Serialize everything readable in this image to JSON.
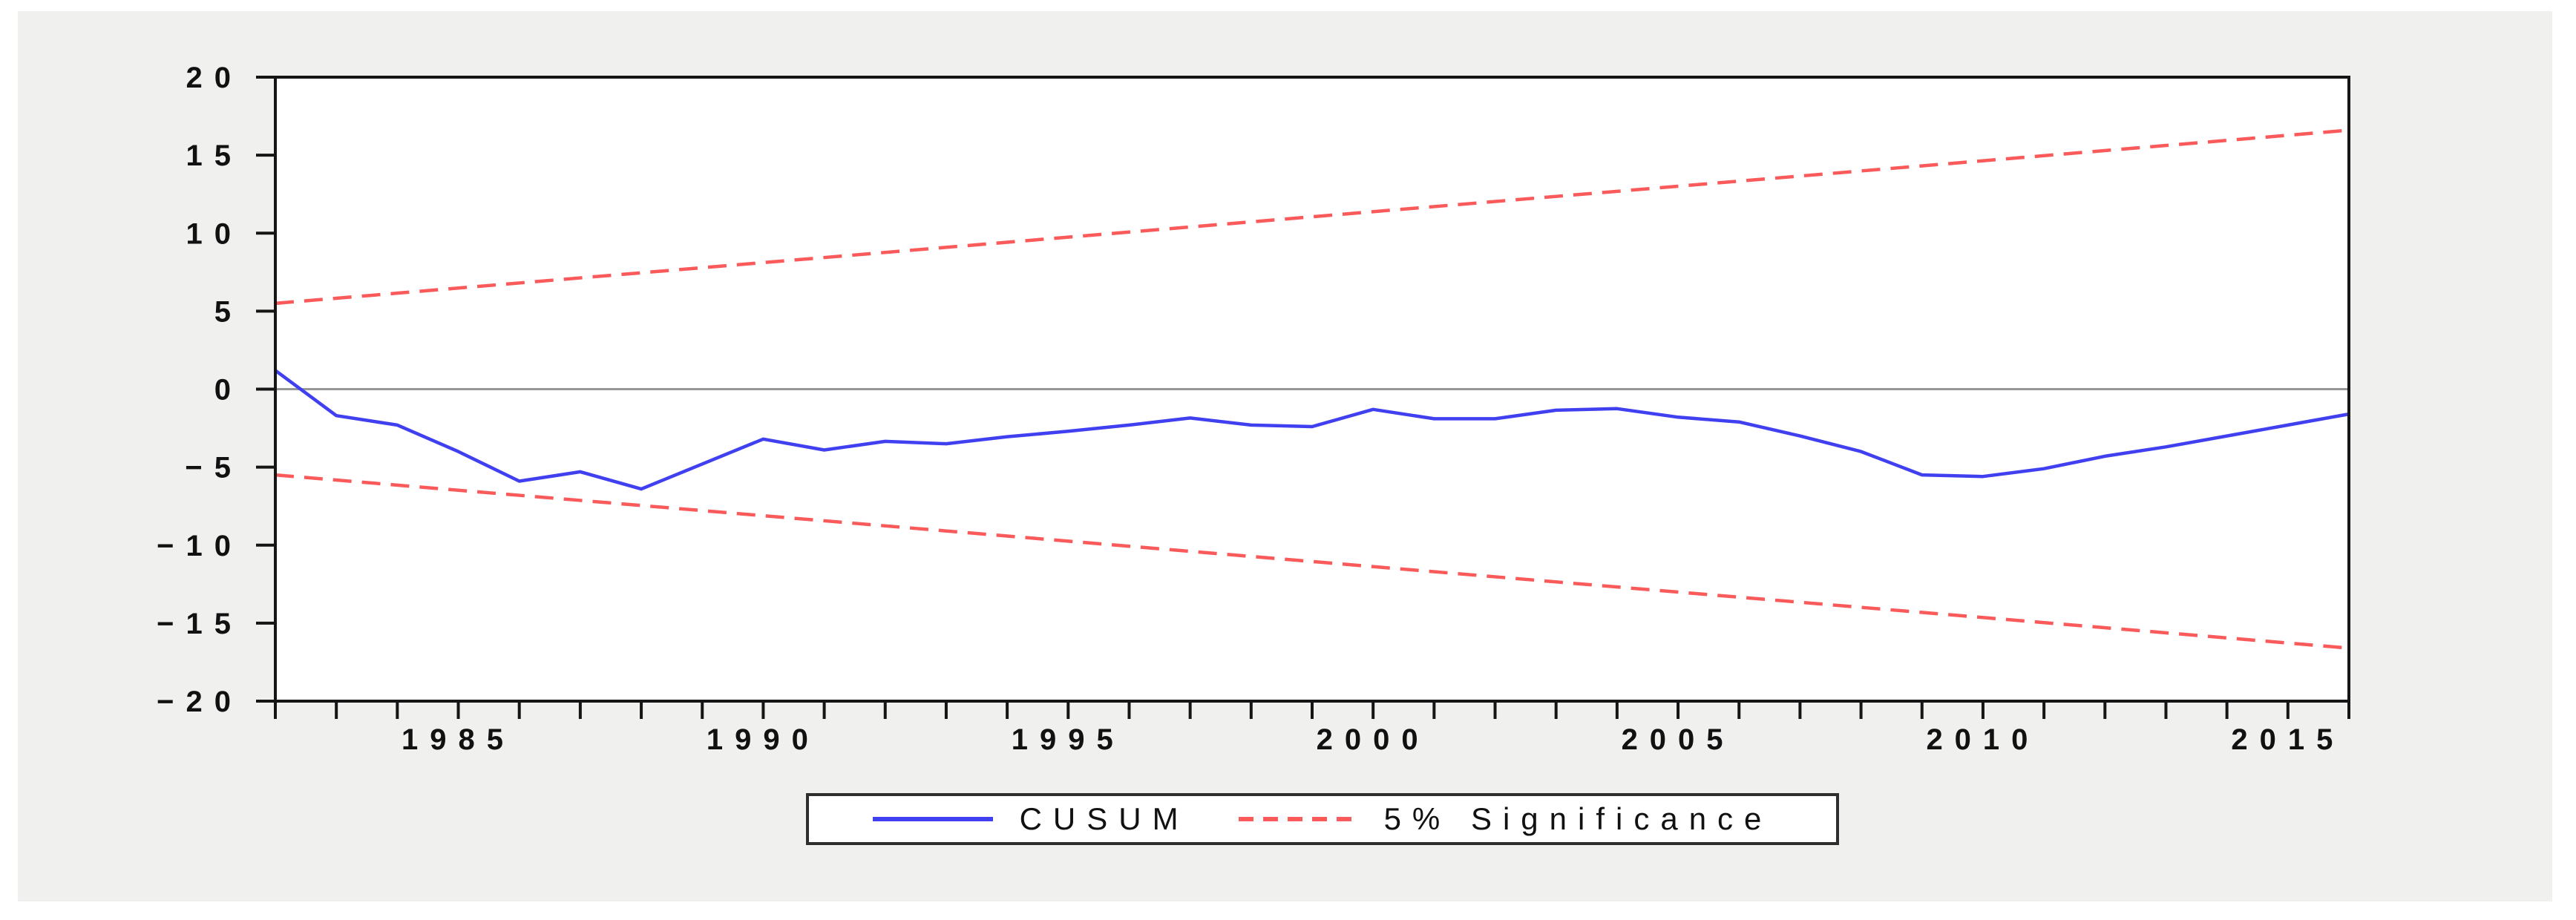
{
  "colors": {
    "figure_bg": "#f0f0ef",
    "plot_bg": "#ffffff",
    "frame": "#151515",
    "zero_line": "#979797",
    "text": "#111111",
    "cusum_blue": "#4040f0",
    "significance_red": "#fa5a5a"
  },
  "chart_data": {
    "type": "line",
    "title": "",
    "xlabel": "",
    "ylabel": "",
    "grid": false,
    "zero_line": true,
    "x": [
      1982,
      1983,
      1984,
      1985,
      1986,
      1987,
      1988,
      1989,
      1990,
      1991,
      1992,
      1993,
      1994,
      1995,
      1996,
      1997,
      1998,
      1999,
      2000,
      2001,
      2002,
      2003,
      2004,
      2005,
      2006,
      2007,
      2008,
      2009,
      2010,
      2011,
      2012,
      2013,
      2014,
      2015,
      2016
    ],
    "series": [
      {
        "name": "CUSUM",
        "style": "solid",
        "color": "#4040f0",
        "values": [
          1.2,
          -1.7,
          -2.3,
          -4.0,
          -5.9,
          -5.3,
          -6.4,
          -4.8,
          -3.2,
          -3.9,
          -3.35,
          -3.5,
          -3.05,
          -2.7,
          -2.3,
          -1.85,
          -2.3,
          -2.4,
          -1.3,
          -1.9,
          -1.9,
          -1.35,
          -1.25,
          -1.8,
          -2.1,
          -3.0,
          -4.0,
          -5.5,
          -5.6,
          -5.1,
          -4.3,
          -3.7,
          -3.0,
          -2.3,
          -1.6
        ]
      },
      {
        "name": "5% Significance (upper bound)",
        "style": "dashed",
        "color": "#fa5a5a",
        "x": [
          1982,
          2016
        ],
        "values": [
          5.5,
          16.6
        ]
      },
      {
        "name": "5% Significance (lower bound)",
        "style": "dashed",
        "color": "#fa5a5a",
        "x": [
          1982,
          2016
        ],
        "values": [
          -5.5,
          -16.6
        ]
      }
    ],
    "x_axis": {
      "range": [
        1982,
        2016
      ],
      "minor_tick_step": 1,
      "labeled_ticks": [
        "1985",
        "1990",
        "1995",
        "2000",
        "2005",
        "2010",
        "2015"
      ]
    },
    "y_axis": {
      "range": [
        -20,
        20
      ],
      "ticks": [
        20,
        15,
        10,
        5,
        0,
        -5,
        -10,
        -15,
        -20
      ],
      "tick_labels": [
        "20",
        "15",
        "10",
        "5",
        "0",
        "−5",
        "−10",
        "−15",
        "−20"
      ]
    },
    "legend": {
      "position": "bottom-center",
      "items": [
        {
          "label": "CUSUM",
          "style": "solid",
          "color": "#4040f0"
        },
        {
          "label": "5% Significance",
          "style": "dashed",
          "color": "#fa5a5a"
        }
      ]
    }
  }
}
